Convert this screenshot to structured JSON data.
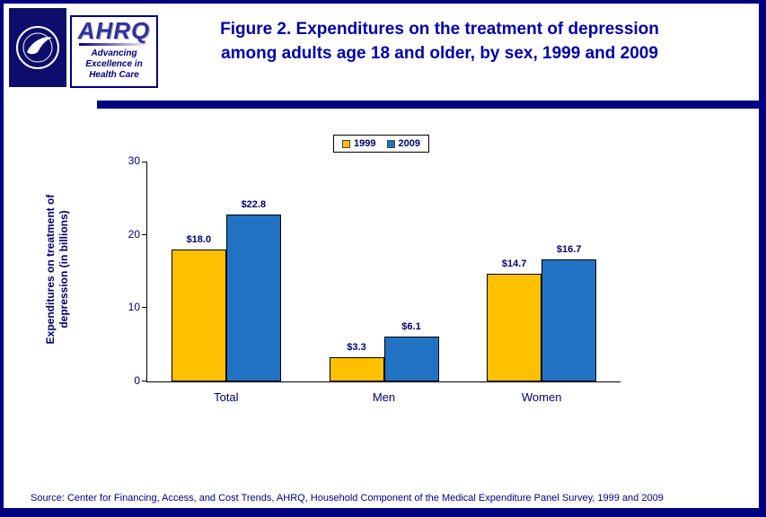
{
  "header": {
    "title_line1": "Figure 2. Expenditures on the treatment of depression",
    "title_line2": "among adults age 18 and older, by sex, 1999 and 2009"
  },
  "logos": {
    "ahrq_acronym": "AHRQ",
    "ahrq_tagline_line1": "Advancing",
    "ahrq_tagline_line2": "Excellence in",
    "ahrq_tagline_line3": "Health Care"
  },
  "footer": {
    "source": "Source: Center for Financing, Access, and Cost Trends, AHRQ, Household Component of the Medical Expenditure Panel Survey,  1999 and 2009"
  },
  "chart_data": {
    "type": "bar",
    "categories": [
      "Total",
      "Men",
      "Women"
    ],
    "series": [
      {
        "name": "1999",
        "color": "#FFC000",
        "values": [
          18.0,
          3.3,
          14.7
        ],
        "labels": [
          "$18.0",
          "$3.3",
          "$14.7"
        ]
      },
      {
        "name": "2009",
        "color": "#2272C3",
        "values": [
          22.8,
          6.1,
          16.7
        ],
        "labels": [
          "$22.8",
          "$6.1",
          "$16.7"
        ]
      }
    ],
    "ylabel": "Expenditures on treatment of depression (in billions)",
    "ylim": [
      0,
      30
    ],
    "yticks": [
      0,
      10,
      20,
      30
    ],
    "grid": false,
    "legend_position": "top-center"
  }
}
